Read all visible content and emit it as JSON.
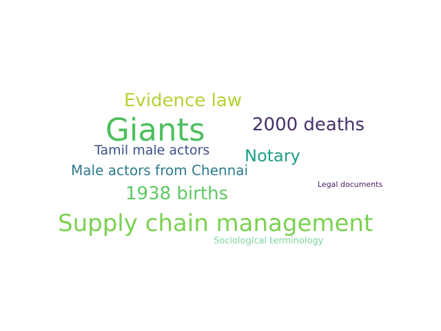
{
  "words": [
    {
      "text": "Giants",
      "color": "#4dbf5f"
    },
    {
      "text": "Evidence law",
      "color": "#b2d232"
    },
    {
      "text": "2000 deaths",
      "color": "#46306b"
    },
    {
      "text": "Tamil male actors",
      "color": "#3b4f86"
    },
    {
      "text": "Notary",
      "color": "#1f9e89"
    },
    {
      "text": "Male actors from Chennai",
      "color": "#2f7b8e"
    },
    {
      "text": "1938 births",
      "color": "#5ec962"
    },
    {
      "text": "Legal documents",
      "color": "#461a5e"
    },
    {
      "text": "Supply chain management",
      "color": "#7ad151"
    },
    {
      "text": "Sociological terminology",
      "color": "#7fd3a1"
    }
  ]
}
